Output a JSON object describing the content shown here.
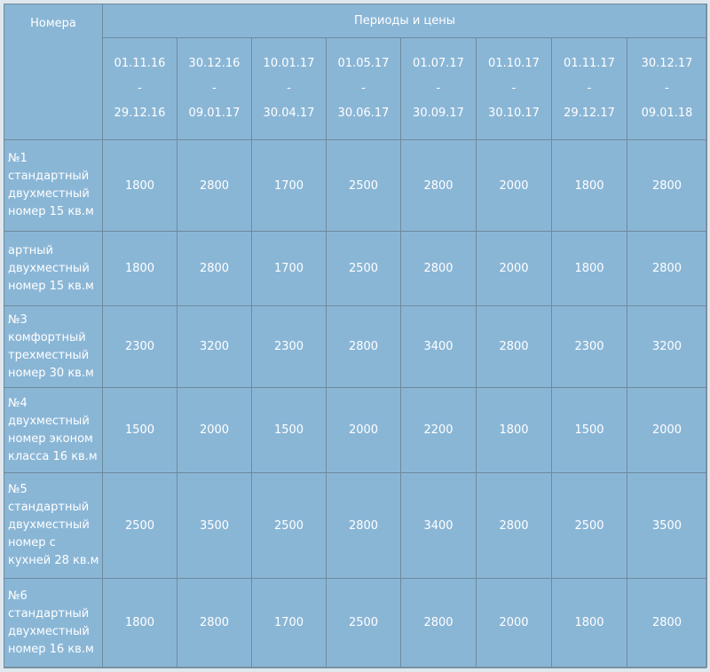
{
  "header": {
    "rooms_label": "Номера",
    "periods_label": "Периоды и цены"
  },
  "periods": [
    {
      "from": "01.11.16",
      "sep": "-",
      "to": "29.12.16"
    },
    {
      "from": "30.12.16",
      "sep": "-",
      "to": "09.01.17"
    },
    {
      "from": "10.01.17",
      "sep": "-",
      "to": "30.04.17"
    },
    {
      "from": "01.05.17",
      "sep": "-",
      "to": "30.06.17"
    },
    {
      "from": "01.07.17",
      "sep": "-",
      "to": "30.09.17"
    },
    {
      "from": "01.10.17",
      "sep": "-",
      "to": "30.10.17"
    },
    {
      "from": "01.11.17",
      "sep": "-",
      "to": "29.12.17"
    },
    {
      "from": "30.12.17",
      "sep": "-",
      "to": "09.01.18"
    }
  ],
  "rows": [
    {
      "name": [
        "№1",
        "стандартный",
        "двухместный",
        "номер 15 кв.м"
      ],
      "prices": [
        "1800",
        "2800",
        "1700",
        "2500",
        "2800",
        "2000",
        "1800",
        "2800"
      ]
    },
    {
      "name": [
        "артный",
        "двухместный",
        "номер 15 кв.м"
      ],
      "prices": [
        "1800",
        "2800",
        "1700",
        "2500",
        "2800",
        "2000",
        "1800",
        "2800"
      ]
    },
    {
      "name": [
        "№3",
        "комфортный",
        "трехместный",
        "номер 30 кв.м"
      ],
      "prices": [
        "2300",
        "3200",
        "2300",
        "2800",
        "3400",
        "2800",
        "2300",
        "3200"
      ]
    },
    {
      "name": [
        "№4",
        "двухместный",
        "номер эконом",
        "класса 16 кв.м"
      ],
      "prices": [
        "1500",
        "2000",
        "1500",
        "2000",
        "2200",
        "1800",
        "1500",
        "2000"
      ]
    },
    {
      "name": [
        "№5",
        "стандартный",
        "двухместный",
        "номер с",
        "кухней 28 кв.м"
      ],
      "prices": [
        "2500",
        "3500",
        "2500",
        "2800",
        "3400",
        "2800",
        "2500",
        "3500"
      ]
    },
    {
      "name": [
        "№6",
        "стандартный",
        "двухместный",
        "номер 16 кв.м"
      ],
      "prices": [
        "1800",
        "2800",
        "1700",
        "2500",
        "2800",
        "2000",
        "1800",
        "2800"
      ]
    }
  ]
}
